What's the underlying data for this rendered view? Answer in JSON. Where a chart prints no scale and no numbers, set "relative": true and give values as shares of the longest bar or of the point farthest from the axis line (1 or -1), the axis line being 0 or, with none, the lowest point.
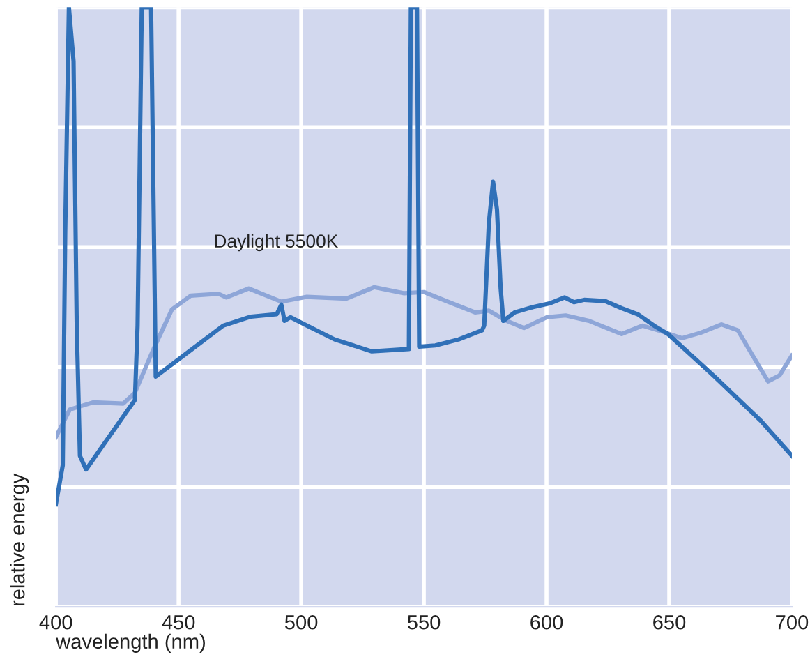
{
  "chart_data": {
    "type": "line",
    "relative": true,
    "xlabel": "wavelength (nm)",
    "ylabel": "relative energy",
    "xlim": [
      400,
      700
    ],
    "xticks": [
      400,
      450,
      500,
      550,
      600,
      650,
      700
    ],
    "grid": true,
    "legend": false,
    "marker": "none",
    "line_style": "solid",
    "series": [
      {
        "name": "Daylight 5500K",
        "color": "#8ea6d8",
        "x": [
          400,
          405.7,
          415.2,
          427.5,
          432.2,
          439.8,
          447.3,
          455,
          466.3,
          469.5,
          478.6,
          491.9,
          502.3,
          518.4,
          529.7,
          542,
          550,
          560.4,
          570.9,
          576.5,
          583.2,
          590.8,
          600.2,
          607.8,
          617.3,
          630.6,
          639.1,
          645.7,
          655.2,
          662.8,
          671.3,
          678,
          683.6,
          690.3,
          695,
          700
        ],
        "values": [
          0.283,
          0.329,
          0.341,
          0.339,
          0.357,
          0.43,
          0.496,
          0.519,
          0.522,
          0.516,
          0.531,
          0.509,
          0.517,
          0.514,
          0.533,
          0.523,
          0.525,
          0.508,
          0.491,
          0.494,
          0.478,
          0.465,
          0.483,
          0.486,
          0.477,
          0.455,
          0.469,
          0.461,
          0.448,
          0.457,
          0.471,
          0.461,
          0.422,
          0.376,
          0.386,
          0.419
        ]
      },
      {
        "color": "#3070b8",
        "x": [
          400,
          402.8,
          403.8,
          405.3,
          407.2,
          408.5,
          409.8,
          412.3,
          432.2,
          433.3,
          435,
          438.8,
          440.7,
          453,
          468.2,
          479.5,
          490,
          491.9,
          493.2,
          495.6,
          502.3,
          513.6,
          528.8,
          543.9,
          544.7,
          547.2,
          548.1,
          554.7,
          564.2,
          573.7,
          574.6,
          576.5,
          578.2,
          579.8,
          581.3,
          582.4,
          587,
          594.5,
          601.2,
          607.4,
          611.2,
          615.4,
          623.9,
          630.6,
          637.2,
          643.8,
          649.5,
          668.5,
          687.4,
          700
        ],
        "values": [
          0.171,
          0.236,
          0.624,
          1.0,
          0.91,
          0.469,
          0.252,
          0.229,
          0.345,
          0.469,
          1.0,
          1.0,
          0.384,
          0.422,
          0.469,
          0.484,
          0.488,
          0.504,
          0.477,
          0.483,
          0.469,
          0.446,
          0.426,
          0.43,
          1.0,
          1.0,
          0.434,
          0.436,
          0.446,
          0.461,
          0.469,
          0.64,
          0.709,
          0.663,
          0.531,
          0.477,
          0.491,
          0.5,
          0.506,
          0.516,
          0.508,
          0.512,
          0.51,
          0.498,
          0.488,
          0.469,
          0.455,
          0.384,
          0.31,
          0.252
        ]
      }
    ]
  }
}
